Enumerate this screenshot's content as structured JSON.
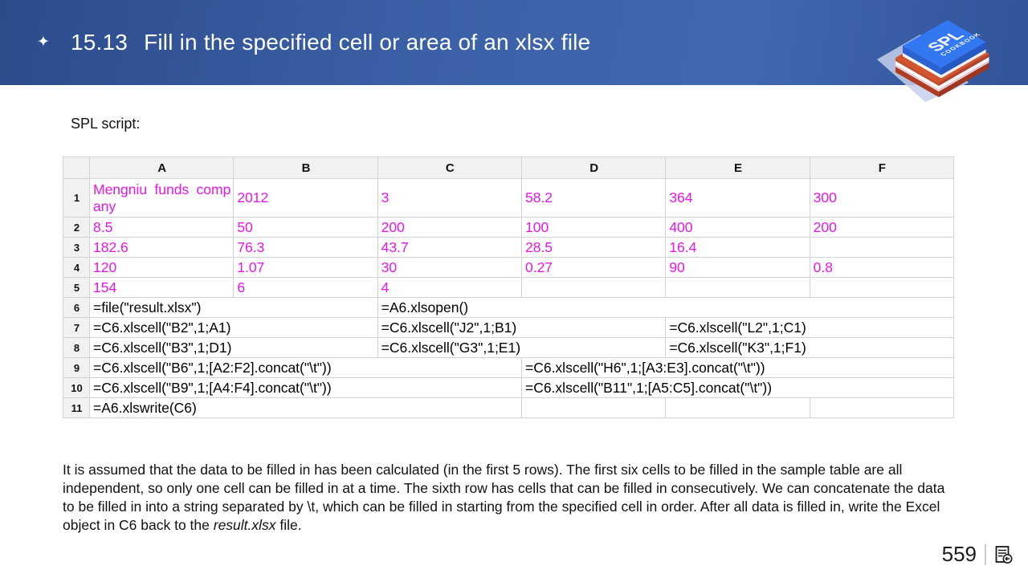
{
  "header": {
    "star": "✦",
    "section_number": "15.13",
    "title": "Fill in the specified cell or area of an xlsx file",
    "accent_color": "#3a5fa6"
  },
  "books_badge": {
    "line1": "SPL",
    "line2": "COOKBOOK"
  },
  "script_label": "SPL script:",
  "colors": {
    "data_text": "#e816e8",
    "grid_border": "#d3d3d3",
    "grid_header_bg": "#f1f1f1"
  },
  "spreadsheet": {
    "corner": "",
    "columns": [
      "A",
      "B",
      "C",
      "D",
      "E",
      "F"
    ],
    "rows": [
      {
        "num": "1",
        "style": "data",
        "h": "tall",
        "cells": [
          {
            "t": "Mengniu funds company",
            "wrap": true
          },
          {
            "t": "2012"
          },
          {
            "t": "3"
          },
          {
            "t": "58.2"
          },
          {
            "t": "364"
          },
          {
            "t": "300"
          }
        ]
      },
      {
        "num": "2",
        "style": "data",
        "cells": [
          {
            "t": "8.5"
          },
          {
            "t": "50"
          },
          {
            "t": "200"
          },
          {
            "t": "100"
          },
          {
            "t": "400"
          },
          {
            "t": "200"
          }
        ]
      },
      {
        "num": "3",
        "style": "data",
        "cells": [
          {
            "t": "182.6"
          },
          {
            "t": "76.3"
          },
          {
            "t": "43.7"
          },
          {
            "t": "28.5"
          },
          {
            "t": "16.4"
          },
          {
            "t": ""
          }
        ]
      },
      {
        "num": "4",
        "style": "data",
        "cells": [
          {
            "t": "120"
          },
          {
            "t": "1.07"
          },
          {
            "t": "30"
          },
          {
            "t": "0.27"
          },
          {
            "t": "90"
          },
          {
            "t": "0.8"
          }
        ]
      },
      {
        "num": "5",
        "style": "data",
        "cells": [
          {
            "t": "154"
          },
          {
            "t": "6"
          },
          {
            "t": "4"
          },
          {
            "t": ""
          },
          {
            "t": ""
          },
          {
            "t": ""
          }
        ]
      },
      {
        "num": "6",
        "style": "formula",
        "cells": [
          {
            "t": "=file(\"result.xlsx\")",
            "span": 2
          },
          {
            "t": "=A6.xlsopen()",
            "span": 4
          }
        ]
      },
      {
        "num": "7",
        "style": "formula",
        "cells": [
          {
            "t": "=C6.xlscell(\"B2\",1;A1)",
            "span": 2
          },
          {
            "t": "=C6.xlscell(\"J2\",1;B1)",
            "span": 2
          },
          {
            "t": "=C6.xlscell(\"L2\",1;C1)",
            "span": 2
          }
        ]
      },
      {
        "num": "8",
        "style": "formula",
        "cells": [
          {
            "t": "=C6.xlscell(\"B3\",1;D1)",
            "span": 2
          },
          {
            "t": "=C6.xlscell(\"G3\",1;E1)",
            "span": 2
          },
          {
            "t": "=C6.xlscell(\"K3\",1;F1)",
            "span": 2
          }
        ]
      },
      {
        "num": "9",
        "style": "formula",
        "cells": [
          {
            "t": "=C6.xlscell(\"B6\",1;[A2:F2].concat(\"\\t\"))",
            "span": 3
          },
          {
            "t": "=C6.xlscell(\"H6\",1;[A3:E3].concat(\"\\t\"))",
            "span": 3
          }
        ]
      },
      {
        "num": "10",
        "style": "formula",
        "cells": [
          {
            "t": "=C6.xlscell(\"B9\",1;[A4:F4].concat(\"\\t\"))",
            "span": 3
          },
          {
            "t": "=C6.xlscell(\"B11\",1;[A5:C5].concat(\"\\t\"))",
            "span": 3
          }
        ]
      },
      {
        "num": "11",
        "style": "formula",
        "cells": [
          {
            "t": "=A6.xlswrite(C6)",
            "span": 3
          },
          {
            "t": ""
          },
          {
            "t": ""
          },
          {
            "t": ""
          }
        ]
      }
    ]
  },
  "description": {
    "parts": [
      {
        "text": "It is assumed that the data to be filled in has been calculated (in the first 5 rows). The first six cells to be filled in the sample table are all independent, so only one cell can be filled in at a time. The sixth row has cells that can be filled in consecutively. We can concatenate the data to be filled in into a string separated by \\t, which can be filled in starting from the specified cell in order. After all data is filled in, write the Excel object in C6 back to the ",
        "italic": false
      },
      {
        "text": "result.xlsx",
        "italic": true
      },
      {
        "text": " file.",
        "italic": false
      }
    ]
  },
  "footer": {
    "page_number": "559"
  }
}
